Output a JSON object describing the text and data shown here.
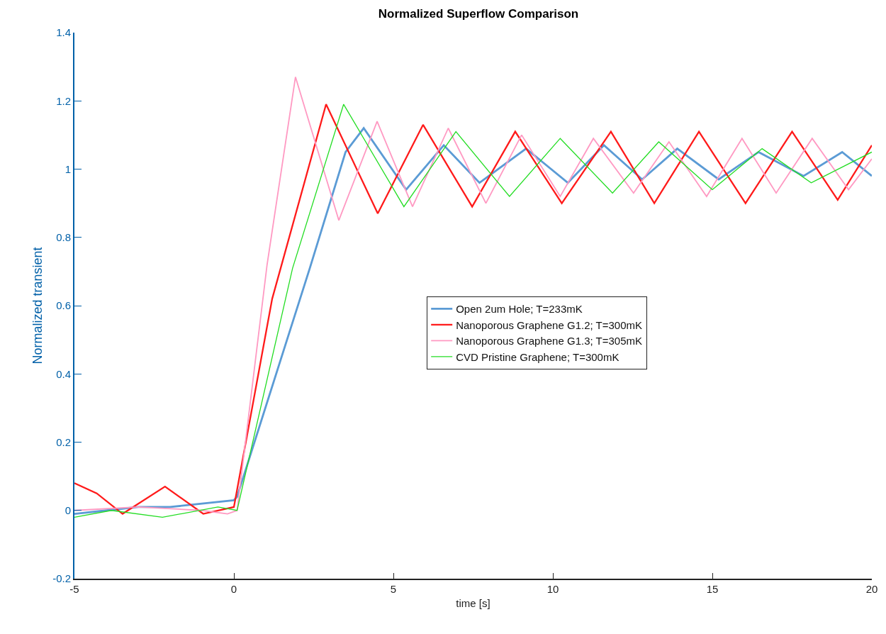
{
  "chart_data": {
    "type": "line",
    "title": "Normalized Superflow Comparison",
    "xlabel": "time [s]",
    "ylabel": "Normalized transient",
    "xlim": [
      -5,
      20
    ],
    "xticks": [
      -5,
      0,
      5,
      10,
      15,
      20
    ],
    "ylim": [
      -0.2,
      1.4
    ],
    "yticks": [
      -0.2,
      0,
      0.2,
      0.4,
      0.6,
      0.8,
      1,
      1.2,
      1.4
    ],
    "grid": false,
    "legend": "center",
    "marker": "none",
    "line_style": "solid",
    "series": [
      {
        "name": "Open 2um Hole; T=233mK",
        "color": "#5b9bd5",
        "x": [
          -5,
          -4,
          -3,
          -2,
          -1,
          0,
          0.1,
          2.38,
          3.5,
          4.07,
          5.4,
          6.58,
          7.7,
          9.16,
          10.47,
          11.6,
          12.8,
          13.9,
          15.2,
          16.45,
          17.86,
          19.07,
          20
        ],
        "values": [
          -0.01,
          0.0,
          0.01,
          0.01,
          0.02,
          0.03,
          0.04,
          0.71,
          1.05,
          1.12,
          0.94,
          1.07,
          0.96,
          1.06,
          0.96,
          1.07,
          0.97,
          1.06,
          0.97,
          1.05,
          0.98,
          1.05,
          0.98
        ]
      },
      {
        "name": "Nanoporous Graphene G1.2; T=300mK",
        "color": "#ff1a1a",
        "x": [
          -5,
          -4.3,
          -3.49,
          -2.16,
          -0.96,
          0,
          1.2,
          2.89,
          4.51,
          5.93,
          7.47,
          8.82,
          10.28,
          11.82,
          13.18,
          14.58,
          16.04,
          17.5,
          18.93,
          20
        ],
        "values": [
          0.08,
          0.05,
          -0.01,
          0.07,
          -0.01,
          0.01,
          0.62,
          1.19,
          0.87,
          1.13,
          0.89,
          1.11,
          0.9,
          1.11,
          0.9,
          1.11,
          0.9,
          1.11,
          0.91,
          1.07
        ]
      },
      {
        "name": "Nanoporous Graphene G1.3; T=305mK",
        "color": "#ff99c2",
        "x": [
          -5,
          -3,
          -1,
          -0.2,
          0.1,
          1.04,
          1.93,
          3.29,
          4.49,
          5.6,
          6.72,
          7.9,
          9.02,
          10.23,
          11.27,
          12.53,
          13.64,
          14.82,
          15.93,
          17.0,
          18.13,
          19.27,
          20
        ],
        "values": [
          0.0,
          0.01,
          0.0,
          -0.01,
          0.0,
          0.72,
          1.27,
          0.85,
          1.14,
          0.89,
          1.12,
          0.9,
          1.1,
          0.92,
          1.09,
          0.93,
          1.08,
          0.92,
          1.09,
          0.93,
          1.09,
          0.94,
          1.03
        ]
      },
      {
        "name": "CVD Pristine Graphene; T=300mK",
        "color": "#22dd22",
        "x": [
          -5,
          -3.84,
          -2.24,
          -0.5,
          0.1,
          1.84,
          3.44,
          5.33,
          6.96,
          8.64,
          10.23,
          11.87,
          13.32,
          15.0,
          16.56,
          18.1,
          20
        ],
        "values": [
          -0.02,
          0.0,
          -0.02,
          0.01,
          0.0,
          0.71,
          1.19,
          0.89,
          1.11,
          0.92,
          1.09,
          0.93,
          1.08,
          0.94,
          1.06,
          0.96,
          1.05
        ]
      }
    ]
  }
}
